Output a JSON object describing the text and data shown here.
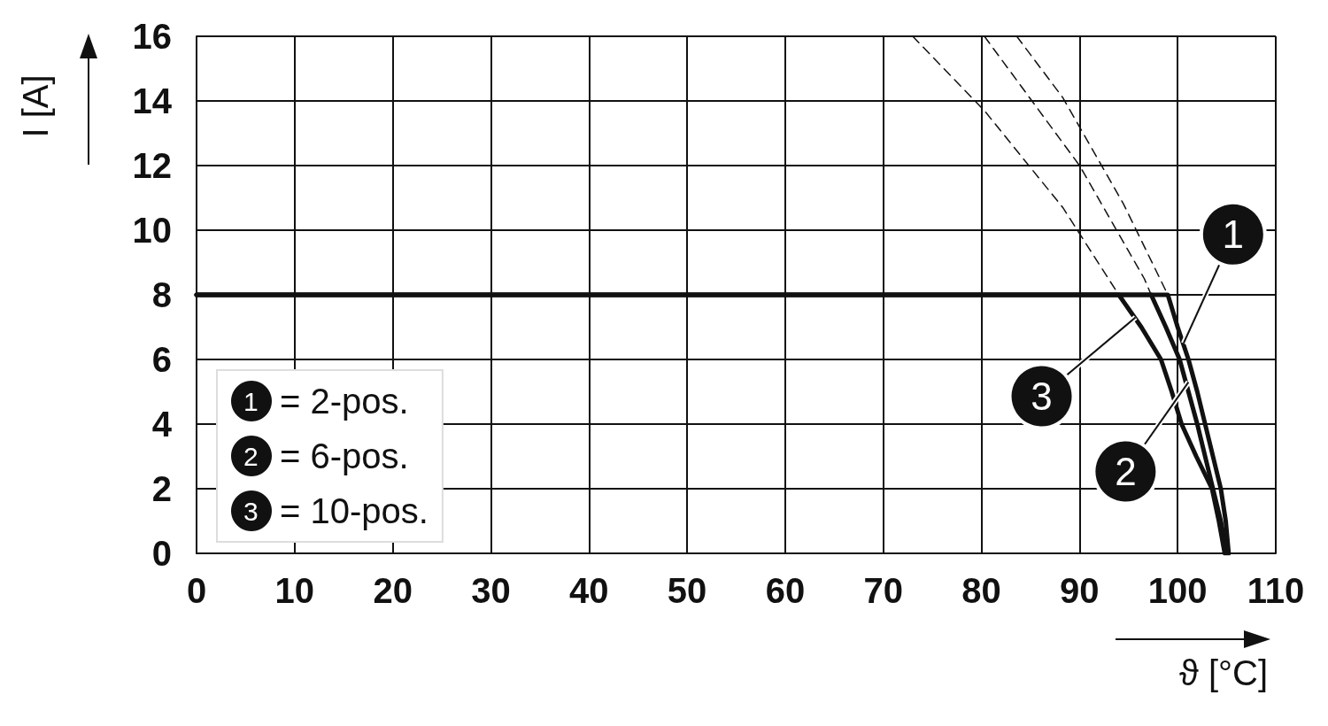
{
  "chart_data": {
    "type": "line",
    "xlabel": "ϑ [°C]",
    "ylabel": "I [A]",
    "xlim": [
      0,
      110
    ],
    "ylim": [
      0,
      16
    ],
    "xticks": [
      0,
      10,
      20,
      30,
      40,
      50,
      60,
      70,
      80,
      90,
      100,
      110
    ],
    "yticks": [
      0,
      2,
      4,
      6,
      8,
      10,
      12,
      14,
      16
    ],
    "grid": true,
    "legend": "bottom left",
    "marker": "none",
    "series": [
      {
        "name": "= 2-pos.",
        "color": "#111111",
        "line_style": "solid",
        "x": [
          0,
          99,
          100,
          101.1,
          102,
          102.8,
          103.6,
          104.4,
          104.9,
          105.2
        ],
        "values": [
          8,
          8,
          7,
          6,
          5,
          4,
          3,
          2,
          1,
          0
        ]
      },
      {
        "name": "= 6-pos.",
        "color": "#111111",
        "line_style": "solid",
        "x": [
          0,
          97.3,
          98.8,
          100.2,
          101.1,
          102,
          102.8,
          103.6,
          104.4,
          105
        ],
        "values": [
          8,
          8,
          7,
          6,
          5,
          4,
          3,
          2,
          1,
          0
        ]
      },
      {
        "name": "= 10-pos.",
        "color": "#111111",
        "line_style": "solid",
        "x": [
          0,
          94,
          96.3,
          98.3,
          99.4,
          100.4,
          101.9,
          103.5,
          104.2,
          104.8
        ],
        "values": [
          8,
          8,
          7,
          6,
          5,
          4,
          3,
          2,
          1,
          0
        ]
      },
      {
        "color": "#111111",
        "line_style": "dashed",
        "x": [
          83.6,
          88.3,
          94.5,
          99
        ],
        "values": [
          16,
          14.1,
          10.8,
          8
        ]
      },
      {
        "color": "#111111",
        "line_style": "dashed",
        "x": [
          80.3,
          90,
          96.6,
          97.3
        ],
        "values": [
          16,
          12,
          8.5,
          8
        ]
      },
      {
        "color": "#111111",
        "line_style": "dashed",
        "x": [
          73,
          80.3,
          88.3,
          94
        ],
        "values": [
          16,
          13.7,
          10.7,
          8
        ]
      }
    ],
    "annotations": [
      {
        "text": "1",
        "x": 100.6,
        "y": 6.5
      },
      {
        "text": "2",
        "x": 101.1,
        "y": 5.3
      },
      {
        "text": "3",
        "x": 95.7,
        "y": 7.3
      }
    ]
  }
}
